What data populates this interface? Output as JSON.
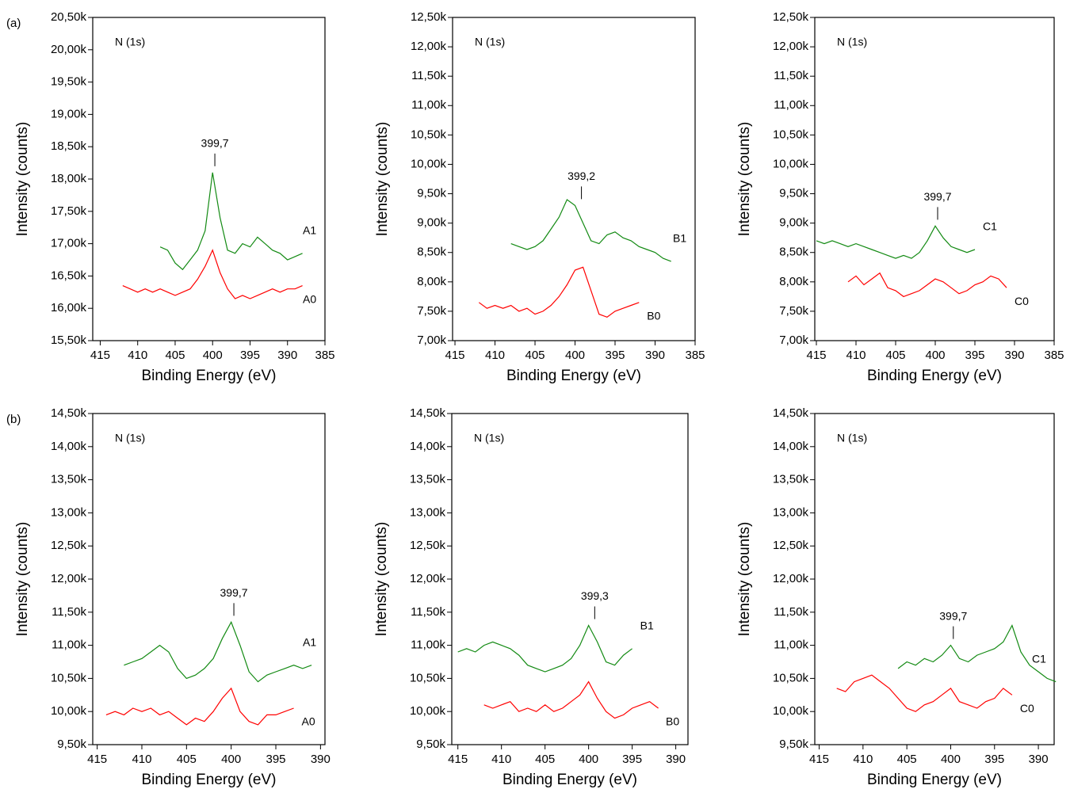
{
  "chart_data": [
    {
      "type": "line",
      "panel_label": "(a)",
      "annotation": "N (1s)",
      "xlabel": "Binding Energy (eV)",
      "ylabel": "Intensity (counts)",
      "xlim": [
        416,
        385
      ],
      "xticks": [
        415,
        410,
        405,
        400,
        395,
        390,
        385
      ],
      "ylim": [
        15500,
        20500
      ],
      "yticks": [
        {
          "value": 15500,
          "label": "15,50k"
        },
        {
          "value": 16000,
          "label": "16,00k"
        },
        {
          "value": 16500,
          "label": "16,50k"
        },
        {
          "value": 17000,
          "label": "17,00k"
        },
        {
          "value": 17500,
          "label": "17,50k"
        },
        {
          "value": 18000,
          "label": "18,00k"
        },
        {
          "value": 18500,
          "label": "18,50k"
        },
        {
          "value": 19000,
          "label": "19,00k"
        },
        {
          "value": 19500,
          "label": "19,50k"
        },
        {
          "value": 20000,
          "label": "20,00k"
        },
        {
          "value": 20500,
          "label": "20,50k"
        }
      ],
      "peak": {
        "value": 399.7,
        "label": "399,7"
      },
      "series": [
        {
          "name": "A1",
          "color": "#138a13",
          "x": [
            407,
            406,
            405,
            404,
            403,
            402,
            401,
            400,
            399,
            398,
            397,
            396,
            395,
            394,
            393,
            392,
            391,
            390,
            389,
            388
          ],
          "values": [
            16950,
            16900,
            16700,
            16600,
            16750,
            16900,
            17200,
            18100,
            17400,
            16900,
            16850,
            17000,
            16950,
            17100,
            17000,
            16900,
            16850,
            16750,
            16800,
            16850
          ]
        },
        {
          "name": "A0",
          "color": "#ff0000",
          "x": [
            412,
            411,
            410,
            409,
            408,
            407,
            406,
            405,
            404,
            403,
            402,
            401,
            400,
            399,
            398,
            397,
            396,
            395,
            394,
            393,
            392,
            391,
            390,
            389,
            388
          ],
          "values": [
            16350,
            16300,
            16250,
            16300,
            16250,
            16300,
            16250,
            16200,
            16250,
            16300,
            16450,
            16650,
            16900,
            16550,
            16300,
            16150,
            16200,
            16150,
            16200,
            16250,
            16300,
            16250,
            16300,
            16300,
            16350
          ]
        }
      ]
    },
    {
      "type": "line",
      "annotation": "N (1s)",
      "xlabel": "Binding Energy (eV)",
      "ylabel": "Intensity (counts)",
      "xlim": [
        415.3,
        385
      ],
      "xticks": [
        415,
        410,
        405,
        400,
        395,
        390,
        385
      ],
      "ylim": [
        7000,
        12500
      ],
      "yticks": [
        {
          "value": 7000,
          "label": "7,00k"
        },
        {
          "value": 7500,
          "label": "7,50k"
        },
        {
          "value": 8000,
          "label": "8,00k"
        },
        {
          "value": 8500,
          "label": "8,50k"
        },
        {
          "value": 9000,
          "label": "9,00k"
        },
        {
          "value": 9500,
          "label": "9,50k"
        },
        {
          "value": 10000,
          "label": "10,00k"
        },
        {
          "value": 10500,
          "label": "10,50k"
        },
        {
          "value": 11000,
          "label": "11,00k"
        },
        {
          "value": 11500,
          "label": "11,50k"
        },
        {
          "value": 12000,
          "label": "12,00k"
        },
        {
          "value": 12500,
          "label": "12,50k"
        }
      ],
      "peak": {
        "value": 399.2,
        "label": "399,2"
      },
      "series": [
        {
          "name": "B1",
          "color": "#138a13",
          "x": [
            408,
            407,
            406,
            405,
            404,
            403,
            402,
            401,
            400,
            399,
            398,
            397,
            396,
            395,
            394,
            393,
            392,
            391,
            390,
            389,
            388
          ],
          "values": [
            8650,
            8600,
            8550,
            8600,
            8700,
            8900,
            9100,
            9400,
            9300,
            9000,
            8700,
            8650,
            8800,
            8850,
            8750,
            8700,
            8600,
            8550,
            8500,
            8400,
            8350
          ]
        },
        {
          "name": "B0",
          "color": "#ff0000",
          "x": [
            412,
            411,
            410,
            409,
            408,
            407,
            406,
            405,
            404,
            403,
            402,
            401,
            400,
            399,
            398,
            397,
            396,
            395,
            394,
            393,
            392
          ],
          "values": [
            7650,
            7550,
            7600,
            7550,
            7600,
            7500,
            7550,
            7450,
            7500,
            7600,
            7750,
            7950,
            8200,
            8250,
            7850,
            7450,
            7400,
            7500,
            7550,
            7600,
            7650
          ]
        }
      ]
    },
    {
      "type": "line",
      "annotation": "N (1s)",
      "xlabel": "Binding Energy (eV)",
      "ylabel": "Intensity (counts)",
      "xlim": [
        415.2,
        385
      ],
      "xticks": [
        415,
        410,
        405,
        400,
        395,
        390,
        385
      ],
      "ylim": [
        7000,
        12500
      ],
      "yticks": [
        {
          "value": 7000,
          "label": "7,00k"
        },
        {
          "value": 7500,
          "label": "7,50k"
        },
        {
          "value": 8000,
          "label": "8,00k"
        },
        {
          "value": 8500,
          "label": "8,50k"
        },
        {
          "value": 9000,
          "label": "9,00k"
        },
        {
          "value": 9500,
          "label": "9,50k"
        },
        {
          "value": 10000,
          "label": "10,00k"
        },
        {
          "value": 10500,
          "label": "10,50k"
        },
        {
          "value": 11000,
          "label": "11,00k"
        },
        {
          "value": 11500,
          "label": "11,50k"
        },
        {
          "value": 12000,
          "label": "12,00k"
        },
        {
          "value": 12500,
          "label": "12,50k"
        }
      ],
      "peak": {
        "value": 399.7,
        "label": "399,7"
      },
      "series": [
        {
          "name": "C1",
          "color": "#138a13",
          "x": [
            415,
            414,
            413,
            412,
            411,
            410,
            409,
            408,
            407,
            406,
            405,
            404,
            403,
            402,
            401,
            400,
            399,
            398,
            397,
            396,
            395
          ],
          "values": [
            8700,
            8650,
            8700,
            8650,
            8600,
            8650,
            8600,
            8550,
            8500,
            8450,
            8400,
            8450,
            8400,
            8500,
            8700,
            8950,
            8750,
            8600,
            8550,
            8500,
            8550
          ]
        },
        {
          "name": "C0",
          "color": "#ff0000",
          "x": [
            411,
            410,
            409,
            408,
            407,
            406,
            405,
            404,
            403,
            402,
            401,
            400,
            399,
            398,
            397,
            396,
            395,
            394,
            393,
            392,
            391
          ],
          "values": [
            8000,
            8100,
            7950,
            8050,
            8150,
            7900,
            7850,
            7750,
            7800,
            7850,
            7950,
            8050,
            8000,
            7900,
            7800,
            7850,
            7950,
            8000,
            8100,
            8050,
            7900
          ]
        }
      ]
    },
    {
      "type": "line",
      "panel_label": "(b)",
      "annotation": "N (1s)",
      "xlabel": "Binding Energy (eV)",
      "ylabel": "Intensity (counts)",
      "xlim": [
        415.5,
        389.5
      ],
      "xticks": [
        415,
        410,
        405,
        400,
        395,
        390
      ],
      "ylim": [
        9500,
        14500
      ],
      "yticks": [
        {
          "value": 9500,
          "label": "9,50k"
        },
        {
          "value": 10000,
          "label": "10,00k"
        },
        {
          "value": 10500,
          "label": "10,50k"
        },
        {
          "value": 11000,
          "label": "11,00k"
        },
        {
          "value": 11500,
          "label": "11,50k"
        },
        {
          "value": 12000,
          "label": "12,00k"
        },
        {
          "value": 12500,
          "label": "12,50k"
        },
        {
          "value": 13000,
          "label": "13,00k"
        },
        {
          "value": 13500,
          "label": "13,50k"
        },
        {
          "value": 14000,
          "label": "14,00k"
        },
        {
          "value": 14500,
          "label": "14,50k"
        }
      ],
      "peak": {
        "value": 399.7,
        "label": "399,7"
      },
      "series": [
        {
          "name": "A1",
          "color": "#138a13",
          "x": [
            412,
            411,
            410,
            409,
            408,
            407,
            406,
            405,
            404,
            403,
            402,
            401,
            400,
            399,
            398,
            397,
            396,
            395,
            394,
            393,
            392,
            391
          ],
          "values": [
            10700,
            10750,
            10800,
            10900,
            11000,
            10900,
            10650,
            10500,
            10550,
            10650,
            10800,
            11100,
            11350,
            11000,
            10600,
            10450,
            10550,
            10600,
            10650,
            10700,
            10650,
            10700
          ]
        },
        {
          "name": "A0",
          "color": "#ff0000",
          "x": [
            414,
            413,
            412,
            411,
            410,
            409,
            408,
            407,
            406,
            405,
            404,
            403,
            402,
            401,
            400,
            399,
            398,
            397,
            396,
            395,
            394,
            393
          ],
          "values": [
            9950,
            10000,
            9950,
            10050,
            10000,
            10050,
            9950,
            10000,
            9900,
            9800,
            9900,
            9850,
            10000,
            10200,
            10350,
            10000,
            9850,
            9800,
            9950,
            9950,
            10000,
            10050
          ]
        }
      ]
    },
    {
      "type": "line",
      "annotation": "N (1s)",
      "xlabel": "Binding Energy (eV)",
      "ylabel": "Intensity (counts)",
      "xlim": [
        415.7,
        388.6
      ],
      "xticks": [
        415,
        410,
        405,
        400,
        395,
        390
      ],
      "ylim": [
        9500,
        14500
      ],
      "yticks": [
        {
          "value": 9500,
          "label": "9,50k"
        },
        {
          "value": 10000,
          "label": "10,00k"
        },
        {
          "value": 10500,
          "label": "10,50k"
        },
        {
          "value": 11000,
          "label": "11,00k"
        },
        {
          "value": 11500,
          "label": "11,50k"
        },
        {
          "value": 12000,
          "label": "12,00k"
        },
        {
          "value": 12500,
          "label": "12,50k"
        },
        {
          "value": 13000,
          "label": "13,00k"
        },
        {
          "value": 13500,
          "label": "13,50k"
        },
        {
          "value": 14000,
          "label": "14,00k"
        },
        {
          "value": 14500,
          "label": "14,50k"
        }
      ],
      "peak": {
        "value": 399.3,
        "label": "399,3"
      },
      "series": [
        {
          "name": "B1",
          "color": "#138a13",
          "x": [
            415,
            414,
            413,
            412,
            411,
            410,
            409,
            408,
            407,
            406,
            405,
            404,
            403,
            402,
            401,
            400,
            399,
            398,
            397,
            396,
            395
          ],
          "values": [
            10900,
            10950,
            10900,
            11000,
            11050,
            11000,
            10950,
            10850,
            10700,
            10650,
            10600,
            10650,
            10700,
            10800,
            11000,
            11300,
            11050,
            10750,
            10700,
            10850,
            10950
          ]
        },
        {
          "name": "B0",
          "color": "#ff0000",
          "x": [
            412,
            411,
            410,
            409,
            408,
            407,
            406,
            405,
            404,
            403,
            402,
            401,
            400,
            399,
            398,
            397,
            396,
            395,
            394,
            393,
            392
          ],
          "values": [
            10100,
            10050,
            10100,
            10150,
            10000,
            10050,
            10000,
            10100,
            10000,
            10050,
            10150,
            10250,
            10450,
            10200,
            10000,
            9900,
            9950,
            10050,
            10100,
            10150,
            10050
          ]
        }
      ]
    },
    {
      "type": "line",
      "annotation": "N (1s)",
      "xlabel": "Binding Energy (eV)",
      "ylabel": "Intensity (counts)",
      "xlim": [
        415.5,
        388.2
      ],
      "xticks": [
        415,
        410,
        405,
        400,
        395,
        390
      ],
      "ylim": [
        9500,
        14500
      ],
      "yticks": [
        {
          "value": 9500,
          "label": "9,50k"
        },
        {
          "value": 10000,
          "label": "10,00k"
        },
        {
          "value": 10500,
          "label": "10,50k"
        },
        {
          "value": 11000,
          "label": "11,00k"
        },
        {
          "value": 11500,
          "label": "11,50k"
        },
        {
          "value": 12000,
          "label": "12,00k"
        },
        {
          "value": 12500,
          "label": "12,50k"
        },
        {
          "value": 13000,
          "label": "13,00k"
        },
        {
          "value": 13500,
          "label": "13,50k"
        },
        {
          "value": 14000,
          "label": "14,00k"
        },
        {
          "value": 14500,
          "label": "14,50k"
        }
      ],
      "peak": {
        "value": 399.7,
        "label": "399,7"
      },
      "series": [
        {
          "name": "C1",
          "color": "#138a13",
          "x": [
            406,
            405,
            404,
            403,
            402,
            401,
            400,
            399,
            398,
            397,
            396,
            395,
            394,
            393,
            392,
            391,
            390,
            389,
            388
          ],
          "values": [
            10650,
            10750,
            10700,
            10800,
            10750,
            10850,
            11000,
            10800,
            10750,
            10850,
            10900,
            10950,
            11050,
            11300,
            10900,
            10700,
            10600,
            10500,
            10450
          ]
        },
        {
          "name": "C0",
          "color": "#ff0000",
          "x": [
            413,
            412,
            411,
            410,
            409,
            408,
            407,
            406,
            405,
            404,
            403,
            402,
            401,
            400,
            399,
            398,
            397,
            396,
            395,
            394,
            393
          ],
          "values": [
            10350,
            10300,
            10450,
            10500,
            10550,
            10450,
            10350,
            10200,
            10050,
            10000,
            10100,
            10150,
            10250,
            10350,
            10150,
            10100,
            10050,
            10150,
            10200,
            10350,
            10250
          ]
        }
      ]
    }
  ]
}
